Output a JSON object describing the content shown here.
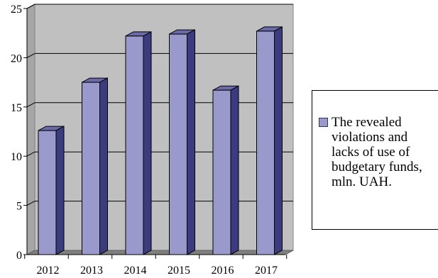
{
  "chart_data": {
    "type": "bar",
    "categories": [
      "2012",
      "2013",
      "2014",
      "2015",
      "2016",
      "2017"
    ],
    "series": [
      {
        "name": "The revealed violations and lacks of use of budgetary funds, mln. UAH.",
        "values": [
          12.6,
          17.5,
          22.2,
          22.4,
          16.7,
          22.7
        ]
      }
    ],
    "title": "",
    "xlabel": "",
    "ylabel": "",
    "ylim": [
      0,
      25
    ],
    "yticks": [
      "0",
      "5",
      "10",
      "15",
      "20",
      "25"
    ],
    "grid": true,
    "legend_position": "right",
    "colors": {
      "bar_front": "#9999cc",
      "bar_side": "#3b3b80",
      "bar_top": "#6a6aa8",
      "plot_wall": "#c0c0c0",
      "floor": "#808080"
    }
  }
}
